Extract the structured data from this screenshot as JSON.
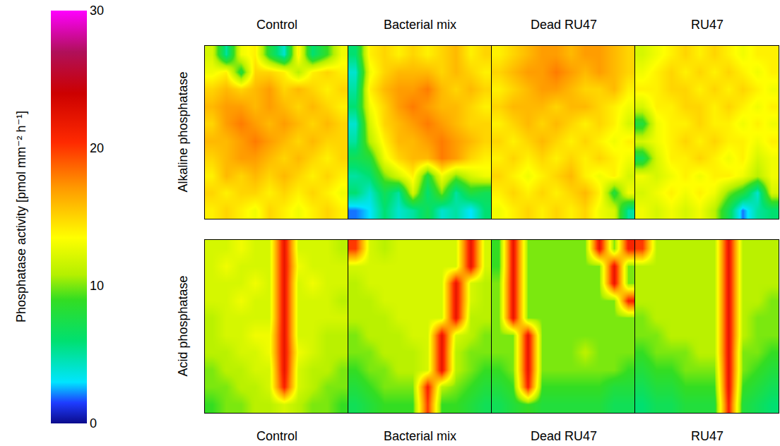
{
  "chart_data": {
    "type": "heatmap",
    "colorbar_title": "Phosphatase activity [pmol mm⁻² h⁻¹]",
    "zlim": [
      0,
      30
    ],
    "zticks": [
      0,
      10,
      20,
      30
    ],
    "tick_labels": false,
    "columns": [
      "Control",
      "Bacterial mix",
      "Dead RU47",
      "RU47"
    ],
    "rows": [
      {
        "label": "Alkaline phosphatase",
        "cells": [
          [
            [
              12,
              5,
              13,
              14,
              8,
              4,
              14,
              6,
              9,
              13
            ],
            [
              13,
              14,
              8,
              15,
              15,
              14,
              11,
              14,
              15,
              14
            ],
            [
              15,
              16,
              15,
              16,
              17,
              15,
              16,
              15,
              14,
              15
            ],
            [
              16,
              17,
              17,
              16,
              17,
              16,
              15,
              16,
              15,
              14
            ],
            [
              15,
              17,
              18,
              17,
              16,
              17,
              16,
              15,
              16,
              15
            ],
            [
              16,
              16,
              17,
              18,
              17,
              16,
              15,
              16,
              15,
              15
            ],
            [
              15,
              16,
              17,
              17,
              16,
              15,
              16,
              15,
              14,
              15
            ],
            [
              14,
              16,
              15,
              16,
              15,
              16,
              15,
              14,
              15,
              14
            ],
            [
              15,
              14,
              15,
              15,
              14,
              15,
              14,
              15,
              14,
              13
            ],
            [
              14,
              15,
              14,
              13,
              15,
              14,
              13,
              14,
              15,
              14
            ]
          ],
          [
            [
              6,
              14,
              15,
              14,
              15,
              14,
              15,
              16,
              14,
              15
            ],
            [
              4,
              13,
              15,
              16,
              16,
              16,
              15,
              16,
              15,
              14
            ],
            [
              5,
              14,
              16,
              17,
              17,
              18,
              16,
              15,
              16,
              15
            ],
            [
              6,
              13,
              15,
              17,
              18,
              17,
              16,
              16,
              15,
              14
            ],
            [
              4,
              12,
              15,
              16,
              17,
              18,
              17,
              16,
              15,
              15
            ],
            [
              5,
              11,
              14,
              16,
              16,
              17,
              18,
              17,
              16,
              15
            ],
            [
              7,
              8,
              13,
              15,
              16,
              16,
              18,
              17,
              15,
              14
            ],
            [
              5,
              6,
              10,
              12,
              14,
              8,
              13,
              10,
              12,
              13
            ],
            [
              6,
              4,
              7,
              5,
              12,
              6,
              10,
              5,
              8,
              7
            ],
            [
              2,
              3,
              6,
              4,
              5,
              7,
              4,
              5,
              3,
              6
            ]
          ],
          [
            [
              14,
              15,
              16,
              17,
              17,
              16,
              17,
              17,
              16,
              15
            ],
            [
              15,
              16,
              17,
              17,
              18,
              17,
              16,
              17,
              16,
              15
            ],
            [
              14,
              15,
              16,
              17,
              17,
              16,
              15,
              15,
              16,
              14
            ],
            [
              15,
              16,
              16,
              16,
              15,
              16,
              16,
              15,
              14,
              13
            ],
            [
              14,
              15,
              16,
              15,
              16,
              15,
              14,
              15,
              14,
              12
            ],
            [
              15,
              14,
              15,
              16,
              15,
              14,
              15,
              14,
              13,
              14
            ],
            [
              14,
              15,
              14,
              15,
              14,
              15,
              14,
              15,
              14,
              13
            ],
            [
              15,
              14,
              13,
              14,
              15,
              16,
              14,
              13,
              14,
              12
            ],
            [
              14,
              15,
              14,
              15,
              14,
              15,
              16,
              14,
              8,
              13
            ],
            [
              13,
              14,
              15,
              14,
              15,
              14,
              15,
              13,
              12,
              5
            ]
          ],
          [
            [
              12,
              13,
              14,
              15,
              14,
              15,
              14,
              13,
              14,
              14
            ],
            [
              13,
              14,
              15,
              14,
              15,
              14,
              15,
              14,
              13,
              14
            ],
            [
              14,
              14,
              15,
              15,
              14,
              15,
              14,
              15,
              14,
              13
            ],
            [
              12,
              14,
              14,
              15,
              15,
              14,
              15,
              14,
              13,
              14
            ],
            [
              8,
              13,
              14,
              14,
              15,
              14,
              14,
              13,
              14,
              13
            ],
            [
              12,
              13,
              14,
              15,
              14,
              15,
              14,
              14,
              13,
              14
            ],
            [
              7,
              12,
              14,
              14,
              15,
              14,
              13,
              14,
              12,
              13
            ],
            [
              13,
              12,
              13,
              14,
              13,
              14,
              14,
              13,
              11,
              13
            ],
            [
              12,
              13,
              14,
              13,
              14,
              13,
              10,
              8,
              4,
              12
            ],
            [
              13,
              12,
              13,
              12,
              13,
              11,
              7,
              2,
              5,
              6
            ]
          ]
        ]
      },
      {
        "label": "Acid phosphatase",
        "cells": [
          [
            [
              12,
              12,
              13,
              12,
              12,
              22,
              12,
              12,
              12,
              11
            ],
            [
              12,
              13,
              12,
              12,
              12,
              22,
              13,
              12,
              12,
              12
            ],
            [
              12,
              12,
              12,
              13,
              12,
              22,
              12,
              13,
              12,
              12
            ],
            [
              12,
              12,
              13,
              12,
              12,
              22,
              12,
              12,
              12,
              11
            ],
            [
              11,
              12,
              12,
              12,
              12,
              22,
              12,
              12,
              12,
              12
            ],
            [
              11,
              12,
              12,
              13,
              13,
              22,
              12,
              12,
              11,
              11
            ],
            [
              11,
              11,
              12,
              12,
              13,
              22,
              13,
              12,
              11,
              11
            ],
            [
              10,
              11,
              11,
              12,
              12,
              22,
              12,
              11,
              11,
              10
            ],
            [
              10,
              10,
              11,
              11,
              12,
              21,
              12,
              11,
              10,
              10
            ],
            [
              9,
              10,
              10,
              11,
              11,
              12,
              11,
              10,
              10,
              9
            ]
          ],
          [
            [
              20,
              12,
              11,
              12,
              12,
              12,
              12,
              12,
              22,
              12
            ],
            [
              12,
              12,
              12,
              12,
              12,
              12,
              12,
              12,
              22,
              12
            ],
            [
              11,
              12,
              12,
              12,
              12,
              12,
              12,
              22,
              12,
              11
            ],
            [
              11,
              11,
              12,
              12,
              12,
              12,
              12,
              22,
              12,
              11
            ],
            [
              11,
              11,
              11,
              12,
              12,
              12,
              12,
              22,
              11,
              11
            ],
            [
              10,
              11,
              11,
              11,
              12,
              12,
              22,
              12,
              11,
              10
            ],
            [
              10,
              10,
              11,
              11,
              11,
              12,
              22,
              11,
              10,
              10
            ],
            [
              9,
              10,
              10,
              11,
              11,
              12,
              22,
              11,
              10,
              9
            ],
            [
              8,
              9,
              10,
              10,
              10,
              21,
              11,
              10,
              9,
              8
            ],
            [
              7,
              8,
              9,
              9,
              9,
              20,
              9,
              9,
              8,
              7
            ]
          ],
          [
            [
              9,
              22,
              10,
              10,
              10,
              10,
              10,
              22,
              10,
              21
            ],
            [
              9,
              22,
              10,
              10,
              10,
              10,
              10,
              10,
              22,
              10
            ],
            [
              10,
              22,
              10,
              10,
              10,
              10,
              10,
              10,
              22,
              10
            ],
            [
              10,
              22,
              10,
              10,
              10,
              10,
              10,
              10,
              10,
              21
            ],
            [
              10,
              22,
              10,
              10,
              10,
              10,
              10,
              10,
              10,
              10
            ],
            [
              10,
              10,
              22,
              10,
              10,
              10,
              10,
              10,
              10,
              10
            ],
            [
              10,
              10,
              22,
              10,
              10,
              10,
              11,
              10,
              10,
              10
            ],
            [
              9,
              10,
              22,
              10,
              10,
              10,
              10,
              10,
              10,
              9
            ],
            [
              8,
              9,
              21,
              9,
              9,
              9,
              9,
              9,
              8,
              8
            ],
            [
              7,
              8,
              9,
              8,
              8,
              8,
              8,
              8,
              7,
              7
            ]
          ],
          [
            [
              20,
              11,
              11,
              11,
              11,
              11,
              22,
              11,
              11,
              11
            ],
            [
              11,
              11,
              11,
              11,
              11,
              11,
              22,
              11,
              11,
              11
            ],
            [
              11,
              11,
              11,
              11,
              11,
              11,
              22,
              11,
              11,
              11
            ],
            [
              11,
              11,
              11,
              11,
              11,
              11,
              22,
              11,
              11,
              10
            ],
            [
              10,
              11,
              11,
              11,
              11,
              11,
              22,
              11,
              10,
              10
            ],
            [
              10,
              10,
              11,
              11,
              11,
              11,
              22,
              11,
              10,
              10
            ],
            [
              9,
              10,
              10,
              10,
              11,
              11,
              22,
              10,
              10,
              9
            ],
            [
              8,
              9,
              9,
              10,
              10,
              10,
              22,
              10,
              9,
              8
            ],
            [
              7,
              8,
              8,
              9,
              9,
              9,
              22,
              9,
              8,
              7
            ],
            [
              6,
              7,
              7,
              8,
              8,
              8,
              21,
              8,
              7,
              6
            ]
          ]
        ]
      }
    ]
  }
}
